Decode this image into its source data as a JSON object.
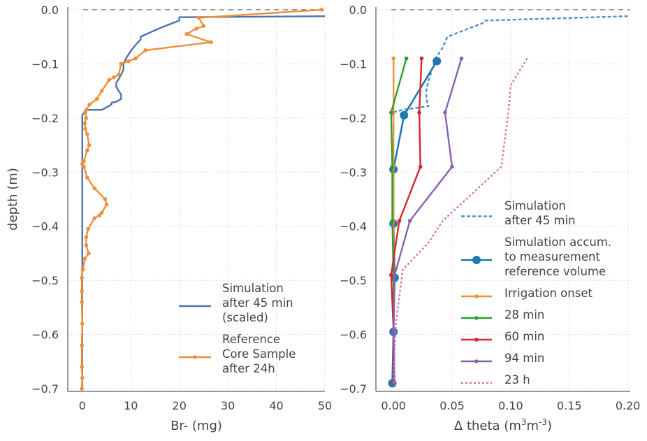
{
  "chart_data": [
    {
      "type": "line",
      "xlabel": "Br- (mg)",
      "ylabel": "depth (m)",
      "xlim": [
        -3,
        50
      ],
      "ylim": [
        -0.705,
        0.005
      ],
      "xticks": [
        0,
        10,
        20,
        30,
        40,
        50
      ],
      "xtick_labels": [
        "0",
        "10",
        "20",
        "30",
        "40",
        "50"
      ],
      "yticks": [
        0.0,
        -0.1,
        -0.2,
        -0.3,
        -0.4,
        -0.5,
        -0.6,
        -0.7
      ],
      "ytick_labels": [
        "0.0",
        "−0.1",
        "−0.2",
        "−0.3",
        "−0.4",
        "−0.5",
        "−0.6",
        "−0.7"
      ],
      "grid": true,
      "legend_position": "lower-right",
      "reference_line_y": 0,
      "series": [
        {
          "name": "Simulation after 45 min (scaled)",
          "legend_lines": [
            "Simulation",
            "after 45 min",
            "(scaled)"
          ],
          "color": "#4c72b0",
          "style": "solid",
          "marker": "none",
          "x": [
            50,
            20,
            20,
            18,
            16,
            14,
            12,
            12,
            11,
            10,
            9,
            8.5,
            8.5,
            8,
            7.5,
            7,
            7,
            7.5,
            8,
            8,
            7,
            6,
            6,
            5.5,
            5,
            4.5,
            4,
            3,
            2,
            1,
            0.5,
            0,
            0,
            0,
            0,
            0,
            0,
            0,
            0,
            0,
            0
          ],
          "y": [
            -0.012,
            -0.014,
            -0.02,
            -0.027,
            -0.034,
            -0.042,
            -0.05,
            -0.055,
            -0.065,
            -0.076,
            -0.09,
            -0.1,
            -0.11,
            -0.12,
            -0.128,
            -0.135,
            -0.142,
            -0.15,
            -0.157,
            -0.165,
            -0.17,
            -0.172,
            -0.175,
            -0.178,
            -0.18,
            -0.183,
            -0.185,
            -0.185,
            -0.185,
            -0.185,
            -0.188,
            -0.195,
            -0.2,
            -0.25,
            -0.3,
            -0.35,
            -0.4,
            -0.45,
            -0.47,
            -0.5,
            -0.7
          ]
        },
        {
          "name": "Reference Core Sample after 24h",
          "legend_lines": [
            "Reference",
            "Core Sample",
            "after 24h"
          ],
          "color": "#ee8f3a",
          "style": "solid",
          "marker": "dot",
          "x": [
            49.3,
            24,
            25,
            23.5,
            21.5,
            26.5,
            13,
            11,
            9.5,
            8,
            7.5,
            6.5,
            5.5,
            4,
            3,
            1.5,
            0.8,
            0.6,
            0.8,
            0.5,
            0.6,
            1,
            1.4,
            1,
            0.3,
            0,
            0.3,
            1,
            2.5,
            4.7,
            5,
            4,
            3.5,
            2.5,
            1.2,
            0.8,
            0.8,
            1.3,
            0.5,
            0.1,
            -0.1,
            -0.1,
            -0.1,
            0,
            -0.1,
            -0.1,
            0,
            -0.1
          ],
          "y": [
            0.0,
            -0.015,
            -0.03,
            -0.035,
            -0.045,
            -0.06,
            -0.075,
            -0.09,
            -0.095,
            -0.1,
            -0.12,
            -0.125,
            -0.13,
            -0.15,
            -0.165,
            -0.175,
            -0.185,
            -0.19,
            -0.2,
            -0.21,
            -0.22,
            -0.23,
            -0.25,
            -0.26,
            -0.28,
            -0.285,
            -0.29,
            -0.31,
            -0.33,
            -0.35,
            -0.36,
            -0.375,
            -0.38,
            -0.385,
            -0.405,
            -0.42,
            -0.435,
            -0.45,
            -0.46,
            -0.48,
            -0.495,
            -0.52,
            -0.54,
            -0.58,
            -0.62,
            -0.66,
            -0.68,
            -0.7
          ]
        }
      ]
    },
    {
      "type": "line",
      "xlabel": "Δ theta (m3 m-3)",
      "xlabel_parts": {
        "pre": "Δ theta (m",
        "sup1": "3",
        "mid": "m",
        "sup2": "-3",
        "post": ")"
      },
      "ylabel": "",
      "xlim": [
        -0.015,
        0.202
      ],
      "ylim": [
        -0.705,
        0.005
      ],
      "xticks": [
        0.0,
        0.05,
        0.1,
        0.15,
        0.2
      ],
      "xtick_labels": [
        "0.00",
        "0.05",
        "0.10",
        "0.15",
        "0.20"
      ],
      "yticks": [
        0.0,
        -0.1,
        -0.2,
        -0.3,
        -0.4,
        -0.5,
        -0.6,
        -0.7
      ],
      "ytick_labels": [
        "0.0",
        "−0.1",
        "−0.2",
        "−0.3",
        "−0.4",
        "−0.5",
        "−0.6",
        "−0.7"
      ],
      "grid": true,
      "legend_position": "lower-right",
      "reference_line_y": 0,
      "series": [
        {
          "name": "Simulation after 45 min",
          "legend_lines": [
            "Simulation",
            "after 45 min"
          ],
          "color": "#4c8fcf",
          "style": "dashed",
          "marker": "none",
          "x": [
            0.2,
            0.078,
            0.076,
            0.046,
            0.042,
            0.036,
            0.033,
            0.03,
            0.028,
            0.028,
            0.03,
            0.008,
            -0.002,
            0
          ],
          "y": [
            -0.012,
            -0.02,
            -0.025,
            -0.05,
            -0.07,
            -0.09,
            -0.11,
            -0.13,
            -0.15,
            -0.165,
            -0.178,
            -0.185,
            -0.19,
            -0.2
          ]
        },
        {
          "name": "Simulation accum. to measurement reference volume",
          "legend_lines": [
            "Simulation accum.",
            "to measurement",
            "reference volume"
          ],
          "color": "#1f78b4",
          "style": "solid",
          "marker": "big-dot",
          "x": [
            0.037,
            0.009,
            0.0,
            0.0,
            0.001,
            0.0,
            -0.001
          ],
          "y": [
            -0.095,
            -0.195,
            -0.295,
            -0.395,
            -0.495,
            -0.595,
            -0.69
          ]
        },
        {
          "name": "Irrigation onset",
          "legend_lines": [
            "Irrigation onset"
          ],
          "color": "#ee8f3a",
          "style": "solid",
          "marker": "dot",
          "x": [
            0.0,
            0.0,
            0.0,
            0.0,
            0.0,
            0.0,
            0.0
          ],
          "y": [
            -0.09,
            -0.19,
            -0.29,
            -0.39,
            -0.49,
            -0.59,
            -0.69
          ]
        },
        {
          "name": "28 min",
          "legend_lines": [
            "28 min"
          ],
          "color": "#2ca02c",
          "style": "solid",
          "marker": "dot",
          "x": [
            0.011,
            -0.002,
            -0.001,
            -0.001,
            0.0,
            0.0,
            0.0
          ],
          "y": [
            -0.09,
            -0.19,
            -0.29,
            -0.39,
            -0.49,
            -0.59,
            -0.69
          ]
        },
        {
          "name": "60 min",
          "legend_lines": [
            "60 min"
          ],
          "color": "#d62728",
          "style": "solid",
          "marker": "dot",
          "x": [
            0.024,
            0.022,
            0.023,
            0.005,
            -0.002,
            0.0,
            0.0
          ],
          "y": [
            -0.09,
            -0.19,
            -0.29,
            -0.39,
            -0.49,
            -0.59,
            -0.69
          ]
        },
        {
          "name": "94 min",
          "legend_lines": [
            "94 min"
          ],
          "color": "#8860b0",
          "style": "solid",
          "marker": "dot",
          "x": [
            0.058,
            0.044,
            0.05,
            0.014,
            0.001,
            0.0,
            0.001
          ],
          "y": [
            -0.09,
            -0.19,
            -0.29,
            -0.39,
            -0.49,
            -0.59,
            -0.69
          ]
        },
        {
          "name": "23 h",
          "legend_lines": [
            "23 h"
          ],
          "color": "#d673b8",
          "style": "dotted",
          "marker": "none",
          "x": [
            0.114,
            0.1,
            0.098,
            0.092,
            0.042,
            0.03,
            0.008,
            0.002,
            0.0
          ],
          "y": [
            -0.09,
            -0.14,
            -0.19,
            -0.29,
            -0.39,
            -0.43,
            -0.48,
            -0.58,
            -0.69
          ]
        }
      ]
    }
  ]
}
